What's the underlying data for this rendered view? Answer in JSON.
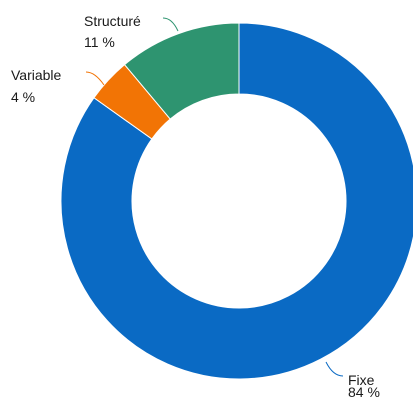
{
  "chart_data": {
    "type": "pie",
    "style": "donut",
    "title": "",
    "slices": [
      {
        "label": "Fixe",
        "value": 84,
        "value_label": "84 %",
        "color": "#0a6ac4"
      },
      {
        "label": "Variable",
        "value": 4,
        "value_label": "4 %",
        "color": "#f27405"
      },
      {
        "label": "Structuré",
        "value": 11,
        "value_label": "11 %",
        "color": "#2e9470"
      }
    ],
    "legend": "none",
    "data_labels": "outside-with-leader-lines"
  }
}
